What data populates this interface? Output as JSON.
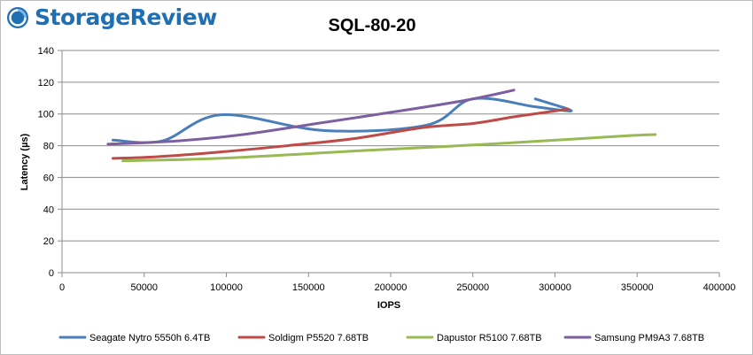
{
  "brand": {
    "name": "StorageReview",
    "color": "#1f6fb5"
  },
  "chart_data": {
    "type": "line",
    "title": "SQL-80-20",
    "xlabel": "IOPS",
    "ylabel": "Latency (µs)",
    "xlim": [
      0,
      400000
    ],
    "ylim": [
      0,
      140
    ],
    "xticks": [
      0,
      50000,
      100000,
      150000,
      200000,
      250000,
      300000,
      350000,
      400000
    ],
    "yticks": [
      0,
      20,
      40,
      60,
      80,
      100,
      120,
      140
    ],
    "grid": true,
    "legend": "bottom",
    "series": [
      {
        "name": "Seagate Nytro 5550h 6.4TB",
        "color": "#4a7ebb",
        "points": [
          [
            31000,
            83.5
          ],
          [
            61000,
            83
          ],
          [
            97000,
            99.5
          ],
          [
            160000,
            89.5
          ],
          [
            222000,
            93
          ],
          [
            250000,
            109.5
          ],
          [
            288000,
            104.5
          ],
          [
            310000,
            102
          ],
          [
            288000,
            109.5
          ]
        ]
      },
      {
        "name": "Soldigm P5520 7.68TB",
        "color": "#be4b48",
        "points": [
          [
            31000,
            72
          ],
          [
            57000,
            73
          ],
          [
            96000,
            76
          ],
          [
            137000,
            80
          ],
          [
            178000,
            84.5
          ],
          [
            220000,
            91.5
          ],
          [
            250000,
            94
          ],
          [
            277000,
            98.5
          ],
          [
            308000,
            103
          ]
        ]
      },
      {
        "name": "Dapustor R5100 7.68TB",
        "color": "#98b954",
        "points": [
          [
            37000,
            70.5
          ],
          [
            95000,
            72
          ],
          [
            185000,
            77
          ],
          [
            260000,
            81
          ],
          [
            340000,
            86
          ],
          [
            361000,
            87
          ]
        ]
      },
      {
        "name": "Samsung PM9A3 7.68TB",
        "color": "#7d5fa0",
        "points": [
          [
            28000,
            81
          ],
          [
            70000,
            83
          ],
          [
            110000,
            87
          ],
          [
            155000,
            94
          ],
          [
            200000,
            101
          ],
          [
            245000,
            108.5
          ],
          [
            275000,
            115
          ]
        ]
      }
    ]
  }
}
